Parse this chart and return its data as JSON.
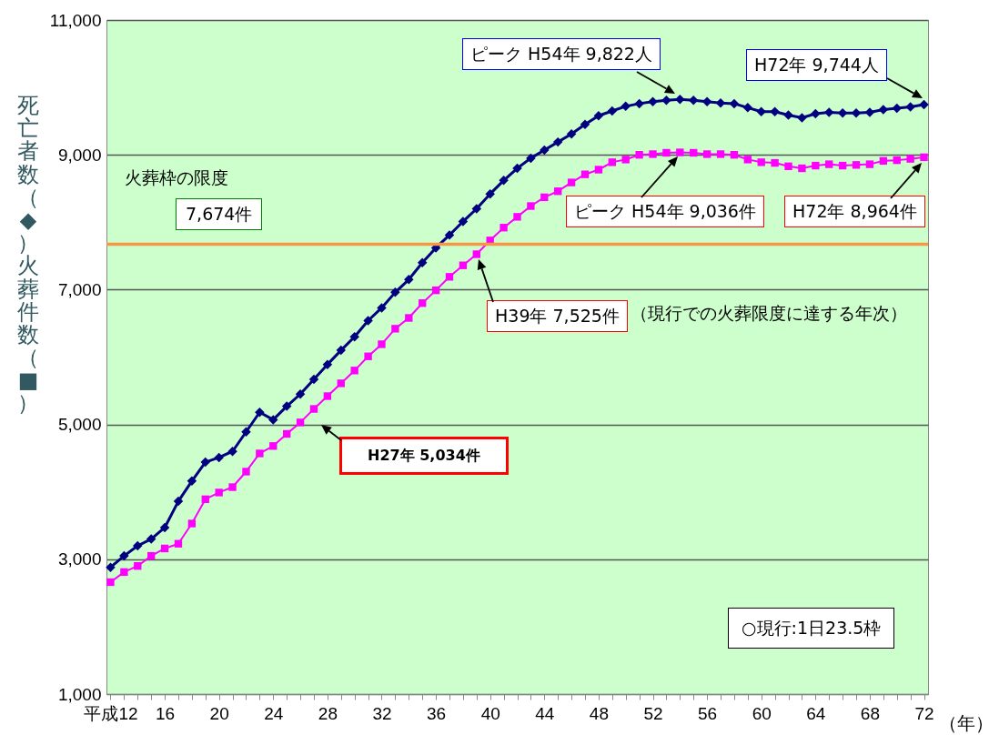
{
  "chart_data": {
    "type": "line",
    "ylabel": "死亡者数（◆）火葬件数（■）",
    "xlabel": "（年）",
    "x": [
      12,
      13,
      14,
      15,
      16,
      17,
      18,
      19,
      20,
      21,
      22,
      23,
      24,
      25,
      26,
      27,
      28,
      29,
      30,
      31,
      32,
      33,
      34,
      35,
      36,
      37,
      38,
      39,
      40,
      41,
      42,
      43,
      44,
      45,
      46,
      47,
      48,
      49,
      50,
      51,
      52,
      53,
      54,
      55,
      56,
      57,
      58,
      59,
      60,
      61,
      62,
      63,
      64,
      65,
      66,
      67,
      68,
      69,
      70,
      71,
      72
    ],
    "series": [
      {
        "color": "#000080",
        "marker": "diamond",
        "values": [
          2880,
          3050,
          3200,
          3300,
          3470,
          3860,
          4160,
          4440,
          4510,
          4600,
          4890,
          5180,
          5070,
          5270,
          5450,
          5670,
          5890,
          6100,
          6300,
          6540,
          6730,
          6960,
          7150,
          7400,
          7620,
          7810,
          8010,
          8200,
          8420,
          8620,
          8800,
          8950,
          9070,
          9190,
          9310,
          9450,
          9580,
          9650,
          9720,
          9760,
          9790,
          9810,
          9822,
          9810,
          9790,
          9770,
          9760,
          9700,
          9640,
          9640,
          9590,
          9550,
          9610,
          9630,
          9620,
          9620,
          9630,
          9670,
          9690,
          9710,
          9744
        ]
      },
      {
        "color": "#ff00ff",
        "marker": "square",
        "values": [
          2660,
          2810,
          2900,
          3050,
          3160,
          3230,
          3530,
          3890,
          3990,
          4070,
          4300,
          4570,
          4680,
          4860,
          5030,
          5230,
          5420,
          5610,
          5800,
          6010,
          6190,
          6420,
          6580,
          6800,
          6990,
          7190,
          7360,
          7525,
          7730,
          7920,
          8080,
          8240,
          8370,
          8460,
          8590,
          8710,
          8780,
          8890,
          8930,
          9000,
          9010,
          9030,
          9036,
          9030,
          9010,
          9010,
          9000,
          8930,
          8890,
          8880,
          8830,
          8800,
          8840,
          8860,
          8840,
          8850,
          8860,
          8910,
          8920,
          8940,
          8964
        ]
      }
    ],
    "xlim": [
      11.7,
      72.3
    ],
    "xticks": [
      {
        "value": 12,
        "label": "平成12"
      },
      {
        "value": 13,
        "label": null
      },
      {
        "value": 14,
        "label": null
      },
      {
        "value": 15,
        "label": null
      },
      16,
      {
        "value": 17,
        "label": null
      },
      {
        "value": 18,
        "label": null
      },
      {
        "value": 19,
        "label": null
      },
      20,
      {
        "value": 21,
        "label": null
      },
      {
        "value": 22,
        "label": null
      },
      {
        "value": 23,
        "label": null
      },
      24,
      {
        "value": 25,
        "label": null
      },
      {
        "value": 26,
        "label": null
      },
      {
        "value": 27,
        "label": null
      },
      28,
      {
        "value": 29,
        "label": null
      },
      {
        "value": 30,
        "label": null
      },
      {
        "value": 31,
        "label": null
      },
      32,
      {
        "value": 33,
        "label": null
      },
      {
        "value": 34,
        "label": null
      },
      {
        "value": 35,
        "label": null
      },
      36,
      {
        "value": 37,
        "label": null
      },
      {
        "value": 38,
        "label": null
      },
      {
        "value": 39,
        "label": null
      },
      40,
      {
        "value": 41,
        "label": null
      },
      {
        "value": 42,
        "label": null
      },
      {
        "value": 43,
        "label": null
      },
      44,
      {
        "value": 45,
        "label": null
      },
      {
        "value": 46,
        "label": null
      },
      {
        "value": 47,
        "label": null
      },
      48,
      {
        "value": 49,
        "label": null
      },
      {
        "value": 50,
        "label": null
      },
      {
        "value": 51,
        "label": null
      },
      52,
      {
        "value": 53,
        "label": null
      },
      {
        "value": 54,
        "label": null
      },
      {
        "value": 55,
        "label": null
      },
      56,
      {
        "value": 57,
        "label": null
      },
      {
        "value": 58,
        "label": null
      },
      {
        "value": 59,
        "label": null
      },
      60,
      {
        "value": 61,
        "label": null
      },
      {
        "value": 62,
        "label": null
      },
      {
        "value": 63,
        "label": null
      },
      64,
      {
        "value": 65,
        "label": null
      },
      {
        "value": 66,
        "label": null
      },
      {
        "value": 67,
        "label": null
      },
      68,
      {
        "value": 69,
        "label": null
      },
      {
        "value": 70,
        "label": null
      },
      {
        "value": 71,
        "label": null
      },
      72
    ],
    "ylim": [
      1000,
      11000
    ],
    "yticks": [
      {
        "value": 1000,
        "label": "1,000"
      },
      {
        "value": 3000,
        "label": "3,000"
      },
      {
        "value": 5000,
        "label": "5,000"
      },
      {
        "value": 7000,
        "label": "7,000"
      },
      {
        "value": 9000,
        "label": "9,000"
      },
      {
        "value": 11000,
        "label": "11,000"
      }
    ],
    "grid": "y",
    "ref_lines": [
      {
        "axis": "y",
        "value": 7674,
        "label": "7,674件",
        "color": "#f79646"
      }
    ],
    "annotations": [
      "ピーク H54年 9,822人",
      "ピーク H54年 9,036件",
      "H72年 8,964件",
      "H72年 9,744人",
      "H39年 7,525件",
      "H27年 5,034件",
      "火葬枠の限度",
      "（現行での火葬限度に達する年次）",
      "○現行:1日23.5枠"
    ]
  }
}
